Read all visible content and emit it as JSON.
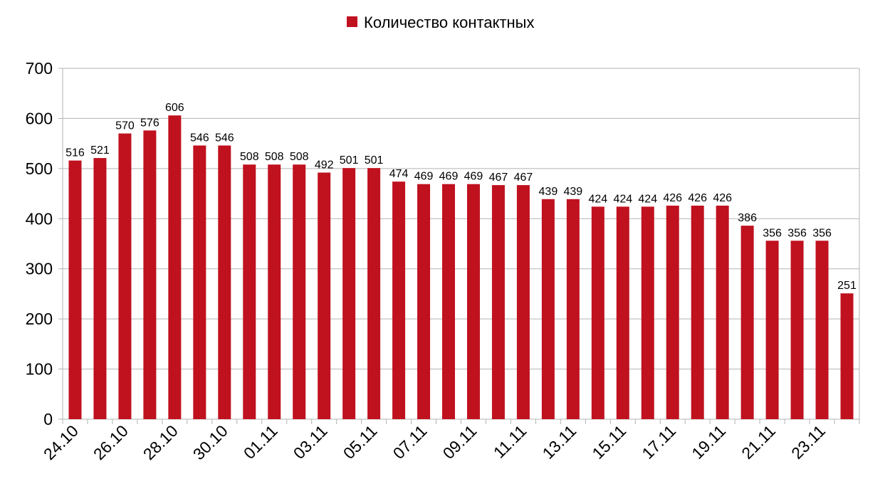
{
  "chart_data": {
    "type": "bar",
    "categories": [
      "24.10",
      "25.10",
      "26.10",
      "27.10",
      "28.10",
      "29.10",
      "30.10",
      "31.10",
      "01.11",
      "02.11",
      "03.11",
      "04.11",
      "05.11",
      "06.11",
      "07.11",
      "08.11",
      "09.11",
      "10.11",
      "11.11",
      "12.11",
      "13.11",
      "14.11",
      "15.11",
      "16.11",
      "17.11",
      "18.11",
      "19.11",
      "20.11",
      "21.11",
      "22.11",
      "23.11",
      "24.11"
    ],
    "tick_labels": [
      "24.10",
      "26.10",
      "28.10",
      "30.10",
      "01.11",
      "03.11",
      "05.11",
      "07.11",
      "09.11",
      "11.11",
      "13.11",
      "15.11",
      "17.11",
      "19.11",
      "21.11",
      "23.11"
    ],
    "series": [
      {
        "name": "Количество контактных",
        "color": "#c0111f",
        "values": [
          516,
          521,
          570,
          576,
          606,
          546,
          546,
          508,
          508,
          508,
          492,
          501,
          501,
          474,
          469,
          469,
          469,
          467,
          467,
          439,
          439,
          424,
          424,
          424,
          426,
          426,
          426,
          386,
          356,
          356,
          356,
          251
        ]
      }
    ],
    "y_ticks": [
      "0",
      "100",
      "200",
      "300",
      "400",
      "500",
      "600",
      "700"
    ],
    "ylim": [
      0,
      700
    ],
    "grid": true,
    "legend_position": "top-center",
    "title": "",
    "xlabel": "",
    "ylabel": ""
  }
}
